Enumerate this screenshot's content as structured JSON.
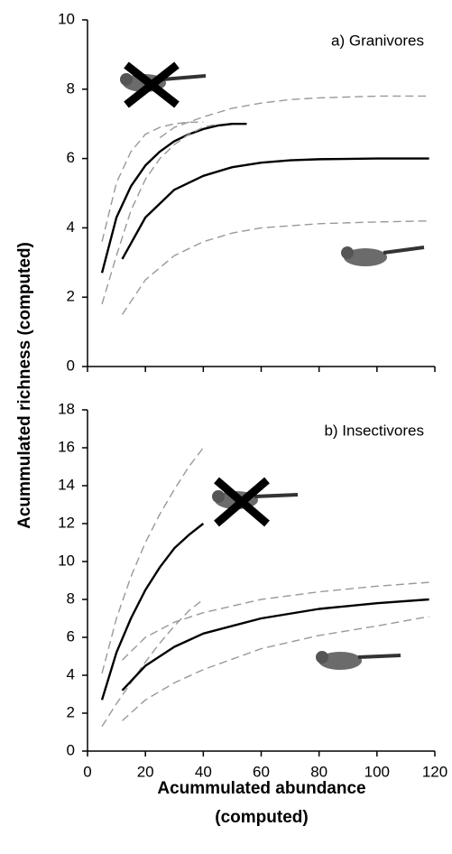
{
  "chart_data": [
    {
      "type": "line",
      "title": "a) Granivores",
      "y_label": "Acummulated richness (computed)",
      "xlim": [
        0,
        120
      ],
      "xticks": [
        0,
        20,
        40,
        60,
        80,
        100,
        120
      ],
      "xtick_labels": false,
      "ylim": [
        0,
        10
      ],
      "yticks": [
        0,
        2,
        4,
        6,
        8,
        10
      ],
      "series": [
        {
          "color": "#000000",
          "dashed": false,
          "x": [
            5,
            10,
            15,
            20,
            25,
            30,
            35,
            40,
            45,
            50,
            55
          ],
          "values": [
            2.7,
            4.3,
            5.2,
            5.8,
            6.2,
            6.5,
            6.7,
            6.85,
            6.95,
            7.0,
            7.0
          ]
        },
        {
          "color": "#999999",
          "dashed": true,
          "x": [
            5,
            10,
            15,
            20,
            25,
            30,
            35,
            40
          ],
          "values": [
            3.6,
            5.3,
            6.2,
            6.7,
            6.9,
            7.0,
            7.05,
            7.05
          ]
        },
        {
          "color": "#999999",
          "dashed": true,
          "x": [
            5,
            10,
            15,
            20,
            25,
            30,
            35,
            40,
            45
          ],
          "values": [
            1.8,
            3.2,
            4.5,
            5.4,
            6.0,
            6.4,
            6.7,
            6.9,
            7.0
          ]
        },
        {
          "color": "#000000",
          "dashed": false,
          "x": [
            12,
            20,
            30,
            40,
            50,
            60,
            70,
            80,
            100,
            118
          ],
          "values": [
            3.1,
            4.3,
            5.1,
            5.5,
            5.75,
            5.88,
            5.95,
            5.98,
            6.0,
            6.0
          ]
        },
        {
          "color": "#999999",
          "dashed": true,
          "x": [
            25,
            30,
            40,
            50,
            60,
            70,
            80,
            100,
            118
          ],
          "values": [
            6.6,
            6.9,
            7.2,
            7.45,
            7.6,
            7.7,
            7.75,
            7.8,
            7.8
          ]
        },
        {
          "color": "#999999",
          "dashed": true,
          "x": [
            12,
            20,
            30,
            40,
            50,
            60,
            80,
            100,
            118
          ],
          "values": [
            1.5,
            2.5,
            3.2,
            3.6,
            3.85,
            4.0,
            4.12,
            4.17,
            4.2
          ]
        }
      ]
    },
    {
      "type": "line",
      "title": "b) Insectivores",
      "x_label": [
        "Acummulated abundance",
        "(computed)"
      ],
      "xlim": [
        0,
        120
      ],
      "xticks": [
        0,
        20,
        40,
        60,
        80,
        100,
        120
      ],
      "xtick_labels": true,
      "ylim": [
        0,
        18
      ],
      "yticks": [
        0,
        2,
        4,
        6,
        8,
        10,
        12,
        14,
        16,
        18
      ],
      "series": [
        {
          "color": "#000000",
          "dashed": false,
          "x": [
            5,
            10,
            15,
            20,
            25,
            30,
            35,
            40
          ],
          "values": [
            2.7,
            5.2,
            7.0,
            8.5,
            9.7,
            10.7,
            11.4,
            12.0
          ]
        },
        {
          "color": "#999999",
          "dashed": true,
          "x": [
            5,
            10,
            15,
            20,
            25,
            30,
            35,
            40
          ],
          "values": [
            4.1,
            7.0,
            9.2,
            11.0,
            12.5,
            13.8,
            15.0,
            16.0
          ]
        },
        {
          "color": "#999999",
          "dashed": true,
          "x": [
            5,
            10,
            15,
            20,
            25,
            30,
            35,
            40
          ],
          "values": [
            1.3,
            2.5,
            3.6,
            4.7,
            5.7,
            6.6,
            7.4,
            8.0
          ]
        },
        {
          "color": "#000000",
          "dashed": false,
          "x": [
            12,
            20,
            30,
            40,
            60,
            80,
            100,
            118
          ],
          "values": [
            3.2,
            4.5,
            5.5,
            6.2,
            7.0,
            7.5,
            7.8,
            8.0
          ]
        },
        {
          "color": "#999999",
          "dashed": true,
          "x": [
            12,
            20,
            30,
            40,
            60,
            80,
            100,
            118
          ],
          "values": [
            4.8,
            6.0,
            6.8,
            7.3,
            8.0,
            8.4,
            8.7,
            8.9
          ]
        },
        {
          "color": "#999999",
          "dashed": true,
          "x": [
            12,
            20,
            30,
            40,
            60,
            80,
            100,
            118
          ],
          "values": [
            1.6,
            2.7,
            3.6,
            4.3,
            5.4,
            6.1,
            6.6,
            7.1
          ]
        }
      ]
    }
  ]
}
